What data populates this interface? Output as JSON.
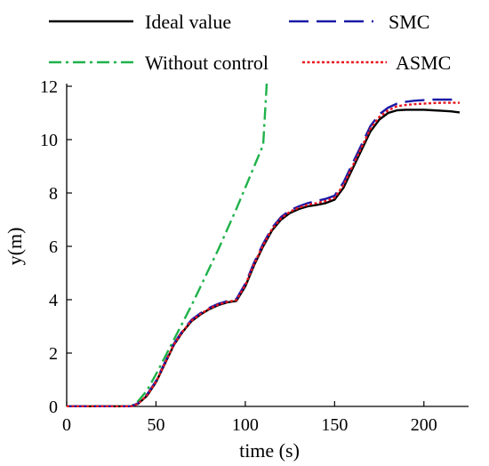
{
  "chart_data": {
    "type": "line",
    "title": "",
    "xlabel": "time (s)",
    "ylabel": "y(m)",
    "xlim": [
      0,
      225
    ],
    "ylim": [
      0,
      12
    ],
    "xticks": [
      0,
      50,
      100,
      150,
      200
    ],
    "yticks": [
      0,
      2,
      4,
      6,
      8,
      10,
      12
    ],
    "x_tick_labels": [
      "0",
      "50",
      "100",
      "150",
      "200"
    ],
    "y_tick_labels": [
      "0",
      "2",
      "4",
      "6",
      "8",
      "10",
      "12"
    ],
    "grid": false,
    "legend_position": "top, outside plot",
    "series": [
      {
        "name": "Ideal value",
        "color": "#000000",
        "dash": "solid",
        "x": [
          0,
          36,
          40,
          45,
          50,
          55,
          60,
          65,
          70,
          75,
          80,
          85,
          90,
          95,
          100,
          105,
          110,
          115,
          120,
          125,
          130,
          135,
          140,
          145,
          150,
          155,
          160,
          165,
          170,
          175,
          180,
          185,
          190,
          195,
          200,
          205,
          210,
          215,
          220
        ],
        "y": [
          0,
          0,
          0.1,
          0.4,
          0.9,
          1.6,
          2.3,
          2.8,
          3.2,
          3.45,
          3.65,
          3.8,
          3.9,
          3.95,
          4.5,
          5.3,
          6.0,
          6.6,
          7.0,
          7.25,
          7.4,
          7.5,
          7.55,
          7.62,
          7.75,
          8.2,
          8.9,
          9.6,
          10.3,
          10.75,
          11.0,
          11.1,
          11.12,
          11.12,
          11.12,
          11.1,
          11.08,
          11.06,
          11.02
        ]
      },
      {
        "name": "SMC",
        "color": "#1a1aa6",
        "dash": "long-dash",
        "x": [
          0,
          36,
          40,
          45,
          50,
          55,
          60,
          65,
          70,
          75,
          80,
          85,
          90,
          95,
          100,
          105,
          110,
          115,
          120,
          125,
          130,
          135,
          140,
          145,
          150,
          155,
          160,
          165,
          170,
          175,
          180,
          185,
          190,
          195,
          200,
          205,
          210,
          215,
          220
        ],
        "y": [
          0,
          0,
          0.12,
          0.45,
          0.95,
          1.65,
          2.35,
          2.85,
          3.25,
          3.5,
          3.7,
          3.85,
          3.95,
          4.02,
          4.6,
          5.4,
          6.1,
          6.7,
          7.1,
          7.35,
          7.5,
          7.62,
          7.7,
          7.78,
          7.9,
          8.4,
          9.1,
          9.8,
          10.5,
          10.95,
          11.2,
          11.35,
          11.42,
          11.46,
          11.48,
          11.5,
          11.5,
          11.5,
          11.52
        ]
      },
      {
        "name": "Without control",
        "color": "#1fb24a",
        "dash": "dash-dot",
        "x": [
          0,
          36,
          40,
          45,
          50,
          55,
          60,
          65,
          70,
          75,
          80,
          85,
          90,
          95,
          100,
          105,
          110,
          112
        ],
        "y": [
          0,
          0,
          0.2,
          0.6,
          1.2,
          1.85,
          2.5,
          3.15,
          3.8,
          4.5,
          5.2,
          5.9,
          6.65,
          7.4,
          8.2,
          9.0,
          9.8,
          12.1
        ]
      },
      {
        "name": "ASMC",
        "color": "#e8141e",
        "dash": "dotted",
        "x": [
          0,
          36,
          40,
          45,
          50,
          55,
          60,
          65,
          70,
          75,
          80,
          85,
          90,
          95,
          100,
          105,
          110,
          115,
          120,
          125,
          130,
          135,
          140,
          145,
          150,
          155,
          160,
          165,
          170,
          175,
          180,
          185,
          190,
          195,
          200,
          205,
          210,
          215,
          220
        ],
        "y": [
          0,
          0,
          0.1,
          0.42,
          0.92,
          1.62,
          2.32,
          2.82,
          3.22,
          3.47,
          3.67,
          3.82,
          3.92,
          3.98,
          4.55,
          5.35,
          6.05,
          6.65,
          7.05,
          7.3,
          7.45,
          7.56,
          7.62,
          7.7,
          7.82,
          8.3,
          9.0,
          9.7,
          10.4,
          10.85,
          11.1,
          11.25,
          11.3,
          11.33,
          11.35,
          11.37,
          11.38,
          11.38,
          11.38
        ]
      }
    ]
  }
}
